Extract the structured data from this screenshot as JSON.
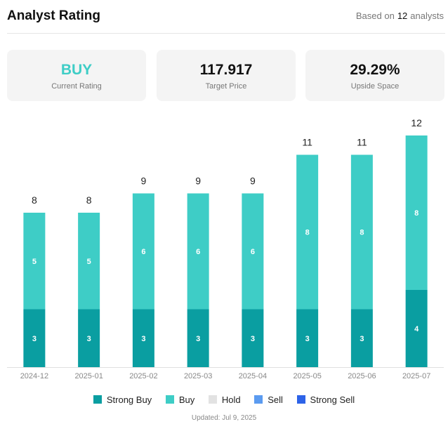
{
  "header": {
    "title": "Analyst Rating",
    "based_prefix": "Based on",
    "based_count": "12",
    "based_suffix": "analysts"
  },
  "cards": {
    "rating": {
      "value": "BUY",
      "label": "Current Rating"
    },
    "target": {
      "value": "117.917",
      "label": "Target Price"
    },
    "upside": {
      "value": "29.29%",
      "label": "Upside Space"
    }
  },
  "colors": {
    "strong_buy": "#0a9ea1",
    "buy": "#3ecdc6",
    "hold": "#e2e2e2",
    "sell": "#5b9bf0",
    "strong_sell": "#2d63e8"
  },
  "chart_data": {
    "type": "bar",
    "stacked": true,
    "categories": [
      "2024-12",
      "2025-01",
      "2025-02",
      "2025-03",
      "2025-04",
      "2025-05",
      "2025-06",
      "2025-07"
    ],
    "series": [
      {
        "name": "Strong Buy",
        "values": [
          3,
          3,
          3,
          3,
          3,
          3,
          3,
          4
        ]
      },
      {
        "name": "Buy",
        "values": [
          5,
          5,
          6,
          6,
          6,
          8,
          8,
          8
        ]
      },
      {
        "name": "Hold",
        "values": [
          0,
          0,
          0,
          0,
          0,
          0,
          0,
          0
        ]
      },
      {
        "name": "Sell",
        "values": [
          0,
          0,
          0,
          0,
          0,
          0,
          0,
          0
        ]
      },
      {
        "name": "Strong Sell",
        "values": [
          0,
          0,
          0,
          0,
          0,
          0,
          0,
          0
        ]
      }
    ],
    "totals": [
      8,
      8,
      9,
      9,
      9,
      11,
      11,
      12
    ],
    "ylim": [
      0,
      12
    ],
    "legend": "bottom"
  },
  "footer": {
    "updated": "Updated: Jul 9, 2025"
  }
}
